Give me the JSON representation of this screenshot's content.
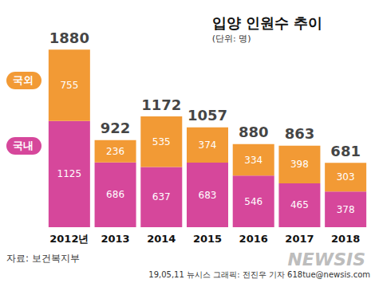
{
  "chart_data": {
    "type": "bar",
    "title": "입양 인원수 추이",
    "subtitle": "(단위: 명)",
    "categories": [
      "2012년",
      "2013",
      "2014",
      "2015",
      "2016",
      "2017",
      "2018"
    ],
    "series": [
      {
        "name": "국내",
        "color": "#d6479b",
        "values": [
          1125,
          686,
          637,
          683,
          546,
          465,
          378
        ]
      },
      {
        "name": "국외",
        "color": "#f29a35",
        "values": [
          755,
          236,
          535,
          374,
          334,
          398,
          303
        ]
      }
    ],
    "totals": [
      1880,
      922,
      1172,
      1057,
      880,
      863,
      681
    ],
    "ylim": [
      0,
      2000
    ],
    "stacked": true,
    "data_labels": true,
    "grid": false,
    "tick_labels": "x",
    "annotations": [
      "자료: 보건복지부",
      "19,05,11 뉴시스 그래픽: 전진우 기자 618tue@newsis.com",
      "NEWSIS"
    ]
  }
}
